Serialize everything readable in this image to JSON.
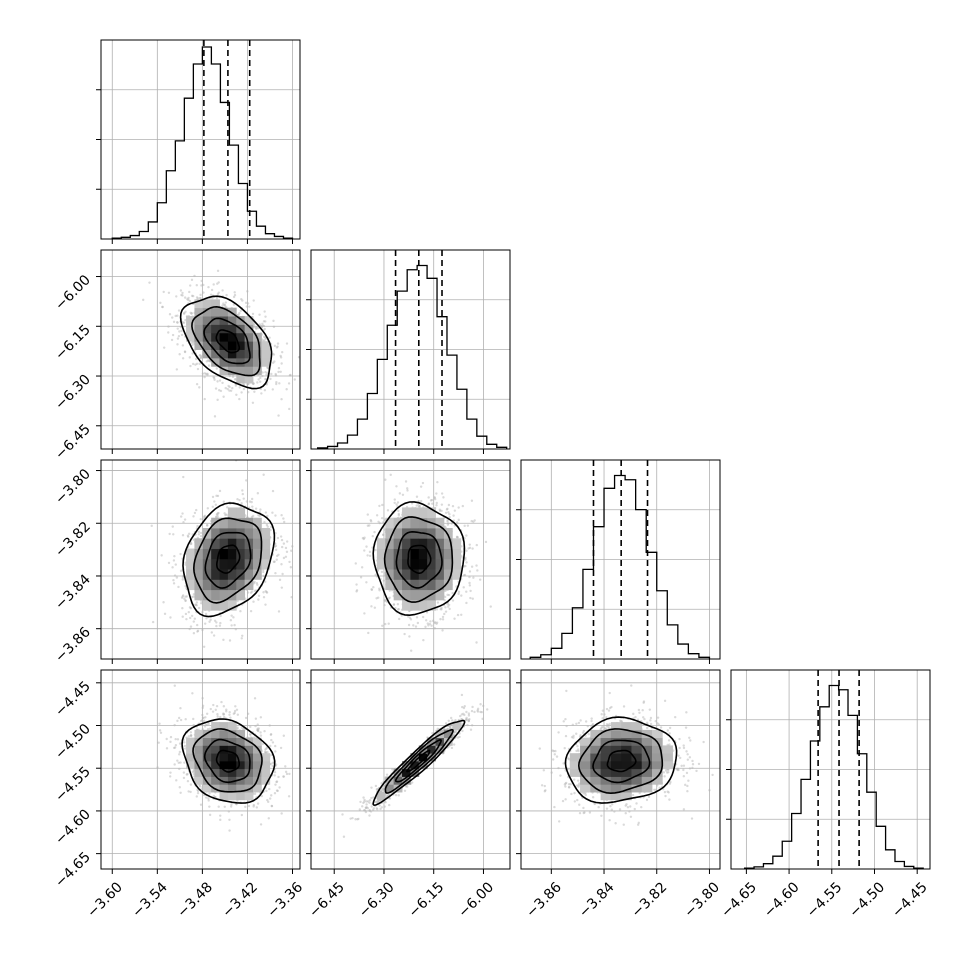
{
  "chart_data": {
    "type": "corner",
    "title": "",
    "grid": true,
    "colors": {
      "contour": "#000000",
      "points": "#b5b5b5",
      "grid": "#b0b0b0"
    },
    "parameters": [
      {
        "ticks": [
          -3.6,
          -3.54,
          -3.48,
          -3.42,
          -3.36
        ],
        "tick_labels": [
          "−3.60",
          "−3.54",
          "−3.48",
          "−3.42",
          "−3.36"
        ],
        "range": [
          -3.615,
          -3.35
        ],
        "quantiles": [
          -3.478,
          -3.446,
          -3.417
        ],
        "mean": -3.446,
        "sigma": 0.03,
        "hist_bin_edges": [
          -3.6,
          -3.588,
          -3.576,
          -3.564,
          -3.552,
          -3.54,
          -3.528,
          -3.516,
          -3.504,
          -3.492,
          -3.48,
          -3.468,
          -3.456,
          -3.444,
          -3.432,
          -3.42,
          -3.408,
          -3.396,
          -3.384,
          -3.372,
          -3.36
        ],
        "hist_values": [
          0.004,
          0.008,
          0.016,
          0.035,
          0.08,
          0.17,
          0.32,
          0.46,
          0.66,
          0.82,
          0.9,
          0.82,
          0.64,
          0.44,
          0.26,
          0.13,
          0.06,
          0.025,
          0.012,
          0.004
        ]
      },
      {
        "ticks": [
          -6.45,
          -6.3,
          -6.15,
          -6.0
        ],
        "tick_labels": [
          "−6.45",
          "−6.30",
          "−6.15",
          "−6.00"
        ],
        "range": [
          -6.52,
          -5.92
        ],
        "quantiles": [
          -6.265,
          -6.195,
          -6.125
        ],
        "mean": -6.195,
        "sigma": 0.068,
        "hist_bin_edges": [
          -6.5,
          -6.47,
          -6.44,
          -6.41,
          -6.38,
          -6.35,
          -6.32,
          -6.29,
          -6.26,
          -6.23,
          -6.2,
          -6.17,
          -6.14,
          -6.11,
          -6.08,
          -6.05,
          -6.02,
          -5.99,
          -5.96,
          -5.93
        ],
        "hist_values": [
          0.005,
          0.012,
          0.028,
          0.065,
          0.14,
          0.26,
          0.42,
          0.58,
          0.74,
          0.84,
          0.86,
          0.8,
          0.62,
          0.44,
          0.28,
          0.14,
          0.06,
          0.022,
          0.008
        ]
      },
      {
        "ticks": [
          -3.86,
          -3.84,
          -3.82,
          -3.8
        ],
        "tick_labels": [
          "−3.86",
          "−3.84",
          "−3.82",
          "−3.80"
        ],
        "range": [
          -3.8715,
          -3.796
        ],
        "quantiles": [
          -3.844,
          -3.8335,
          -3.8235
        ],
        "mean": -3.8335,
        "sigma": 0.0105,
        "hist_bin_edges": [
          -3.868,
          -3.864,
          -3.86,
          -3.856,
          -3.852,
          -3.848,
          -3.844,
          -3.84,
          -3.836,
          -3.832,
          -3.828,
          -3.824,
          -3.82,
          -3.816,
          -3.812,
          -3.808,
          -3.804,
          -3.8
        ],
        "hist_values": [
          0.008,
          0.02,
          0.05,
          0.12,
          0.24,
          0.42,
          0.62,
          0.8,
          0.86,
          0.84,
          0.7,
          0.5,
          0.32,
          0.16,
          0.07,
          0.025,
          0.008
        ]
      },
      {
        "ticks": [
          -4.65,
          -4.6,
          -4.55,
          -4.5,
          -4.45
        ],
        "tick_labels": [
          "−4.65",
          "−4.60",
          "−4.55",
          "−4.50",
          "−4.45"
        ],
        "range": [
          -4.668,
          -4.435
        ],
        "quantiles": [
          -4.566,
          -4.5415,
          -4.518
        ],
        "mean": -4.5415,
        "sigma": 0.0245,
        "hist_bin_edges": [
          -4.652,
          -4.641,
          -4.63,
          -4.619,
          -4.608,
          -4.597,
          -4.586,
          -4.575,
          -4.564,
          -4.553,
          -4.542,
          -4.531,
          -4.52,
          -4.509,
          -4.498,
          -4.487,
          -4.476,
          -4.465,
          -4.454,
          -4.443
        ],
        "hist_values": [
          0.004,
          0.01,
          0.025,
          0.06,
          0.13,
          0.26,
          0.42,
          0.6,
          0.76,
          0.86,
          0.84,
          0.72,
          0.54,
          0.36,
          0.2,
          0.09,
          0.035,
          0.012,
          0.004
        ]
      }
    ],
    "correlations": [
      [
        1.0,
        -0.45,
        0.25,
        -0.2
      ],
      [
        -0.45,
        1.0,
        0.0,
        0.95
      ],
      [
        0.25,
        0.0,
        1.0,
        0.1
      ],
      [
        -0.2,
        0.95,
        0.1,
        1.0
      ]
    ],
    "contour_levels_sigma": [
      0.5,
      1.0,
      1.5,
      2.0
    ]
  }
}
